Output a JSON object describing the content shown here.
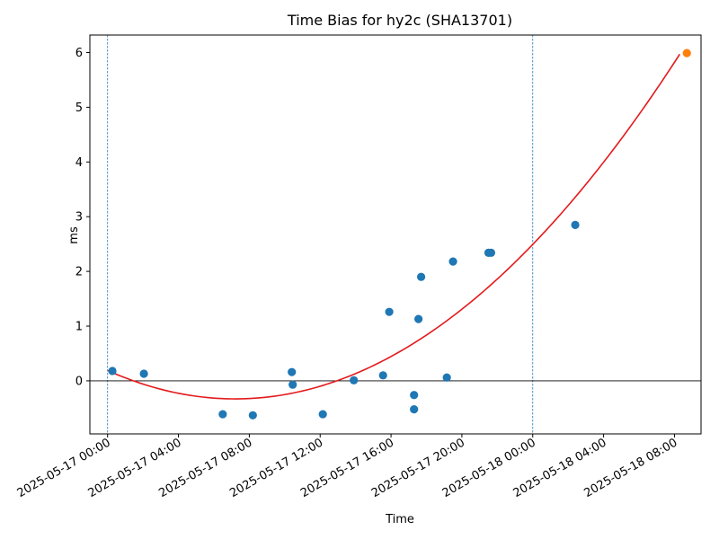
{
  "chart_data": {
    "type": "scatter",
    "title": "Time Bias for hy2c (SHA13701)",
    "xlabel": "Time",
    "ylabel": "ms",
    "x_unit": "hours",
    "xlim": [
      -1.0,
      33.5
    ],
    "ylim": [
      -0.97,
      6.32
    ],
    "x_ticks": [
      {
        "value": 0,
        "label": "2025-05-17 00:00"
      },
      {
        "value": 4,
        "label": "2025-05-17 04:00"
      },
      {
        "value": 8,
        "label": "2025-05-17 08:00"
      },
      {
        "value": 12,
        "label": "2025-05-17 12:00"
      },
      {
        "value": 16,
        "label": "2025-05-17 16:00"
      },
      {
        "value": 20,
        "label": "2025-05-17 20:00"
      },
      {
        "value": 24,
        "label": "2025-05-18 00:00"
      },
      {
        "value": 28,
        "label": "2025-05-18 04:00"
      },
      {
        "value": 32,
        "label": "2025-05-18 08:00"
      }
    ],
    "y_ticks": [
      {
        "value": 0,
        "label": "0"
      },
      {
        "value": 1,
        "label": "1"
      },
      {
        "value": 2,
        "label": "2"
      },
      {
        "value": 3,
        "label": "3"
      },
      {
        "value": 4,
        "label": "4"
      },
      {
        "value": 5,
        "label": "5"
      },
      {
        "value": 6,
        "label": "6"
      }
    ],
    "vlines": [
      0,
      24
    ],
    "hline": 0,
    "series": [
      {
        "kind": "points",
        "color": "#1f77b4",
        "points": [
          {
            "x": 0.27,
            "y": 0.18
          },
          {
            "x": 2.05,
            "y": 0.13
          },
          {
            "x": 6.5,
            "y": -0.61
          },
          {
            "x": 8.2,
            "y": -0.63
          },
          {
            "x": 10.4,
            "y": 0.16
          },
          {
            "x": 10.45,
            "y": -0.07
          },
          {
            "x": 12.15,
            "y": -0.61
          },
          {
            "x": 13.9,
            "y": 0.01
          },
          {
            "x": 15.55,
            "y": 0.1
          },
          {
            "x": 15.9,
            "y": 1.26
          },
          {
            "x": 17.3,
            "y": -0.26
          },
          {
            "x": 17.3,
            "y": -0.52
          },
          {
            "x": 17.55,
            "y": 1.13
          },
          {
            "x": 17.7,
            "y": 1.9
          },
          {
            "x": 19.15,
            "y": 0.06
          },
          {
            "x": 19.5,
            "y": 2.18
          },
          {
            "x": 21.5,
            "y": 2.34
          },
          {
            "x": 21.65,
            "y": 2.34
          },
          {
            "x": 26.4,
            "y": 2.85
          }
        ]
      },
      {
        "kind": "points",
        "color": "#ff7f0e",
        "points": [
          {
            "x": 32.7,
            "y": 5.99
          }
        ]
      },
      {
        "kind": "curve",
        "color": "#e41a1c",
        "fit": "quadratic",
        "vertex": {
          "x": 7.2,
          "y": -0.33
        },
        "anchor": {
          "x": 32.3,
          "y": 5.97
        },
        "x_range": [
          0,
          32.3
        ]
      }
    ]
  }
}
